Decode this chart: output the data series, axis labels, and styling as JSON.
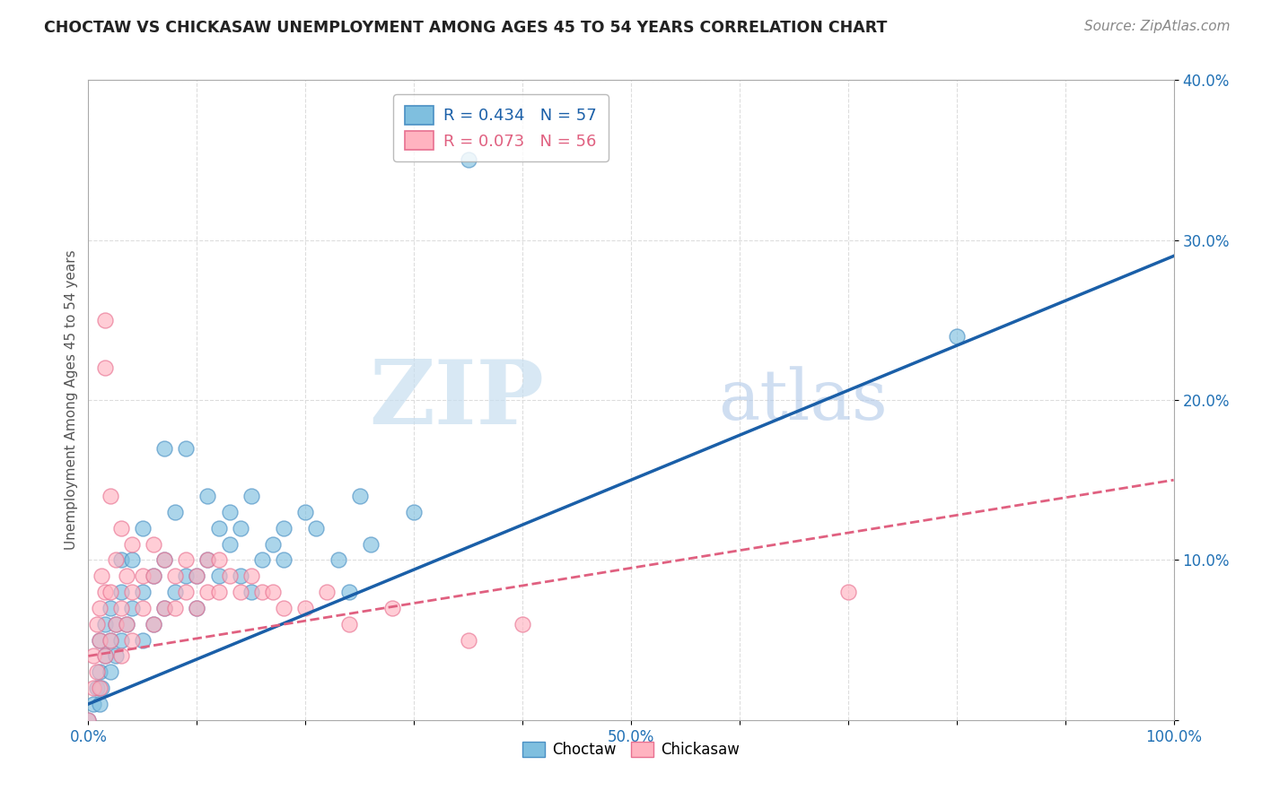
{
  "title": "CHOCTAW VS CHICKASAW UNEMPLOYMENT AMONG AGES 45 TO 54 YEARS CORRELATION CHART",
  "source_text": "Source: ZipAtlas.com",
  "ylabel": "Unemployment Among Ages 45 to 54 years",
  "xlim": [
    0.0,
    1.0
  ],
  "ylim": [
    0.0,
    0.4
  ],
  "x_ticks": [
    0.0,
    0.1,
    0.2,
    0.3,
    0.4,
    0.5,
    0.6,
    0.7,
    0.8,
    0.9,
    1.0
  ],
  "x_tick_labels": [
    "0.0%",
    "",
    "",
    "",
    "",
    "50.0%",
    "",
    "",
    "",
    "",
    "100.0%"
  ],
  "y_ticks": [
    0.0,
    0.1,
    0.2,
    0.3,
    0.4
  ],
  "y_tick_labels": [
    "",
    "10.0%",
    "20.0%",
    "30.0%",
    "40.0%"
  ],
  "choctaw_color": "#7fbfdf",
  "chickasaw_color": "#ffb3c0",
  "choctaw_edge_color": "#4a90c4",
  "chickasaw_edge_color": "#e87090",
  "choctaw_line_color": "#1a5fa8",
  "chickasaw_line_color": "#e06080",
  "R_choctaw": 0.434,
  "N_choctaw": 57,
  "R_chickasaw": 0.073,
  "N_chickasaw": 56,
  "watermark_zip": "ZIP",
  "watermark_atlas": "atlas",
  "watermark_color_zip": "#c8dff0",
  "watermark_color_atlas": "#b0c8e8",
  "background_color": "#ffffff",
  "grid_color": "#dddddd",
  "choctaw_line_x": [
    0.0,
    1.0
  ],
  "choctaw_line_y": [
    0.01,
    0.29
  ],
  "chickasaw_line_x": [
    0.0,
    1.0
  ],
  "chickasaw_line_y": [
    0.04,
    0.15
  ],
  "choctaw_scatter": [
    [
      0.0,
      0.0
    ],
    [
      0.005,
      0.01
    ],
    [
      0.008,
      0.02
    ],
    [
      0.01,
      0.01
    ],
    [
      0.01,
      0.03
    ],
    [
      0.01,
      0.05
    ],
    [
      0.012,
      0.02
    ],
    [
      0.015,
      0.04
    ],
    [
      0.015,
      0.06
    ],
    [
      0.02,
      0.03
    ],
    [
      0.02,
      0.05
    ],
    [
      0.02,
      0.07
    ],
    [
      0.025,
      0.04
    ],
    [
      0.025,
      0.06
    ],
    [
      0.03,
      0.05
    ],
    [
      0.03,
      0.08
    ],
    [
      0.03,
      0.1
    ],
    [
      0.035,
      0.06
    ],
    [
      0.04,
      0.07
    ],
    [
      0.04,
      0.1
    ],
    [
      0.05,
      0.05
    ],
    [
      0.05,
      0.08
    ],
    [
      0.05,
      0.12
    ],
    [
      0.06,
      0.06
    ],
    [
      0.06,
      0.09
    ],
    [
      0.07,
      0.07
    ],
    [
      0.07,
      0.1
    ],
    [
      0.07,
      0.17
    ],
    [
      0.08,
      0.08
    ],
    [
      0.08,
      0.13
    ],
    [
      0.09,
      0.09
    ],
    [
      0.09,
      0.17
    ],
    [
      0.1,
      0.07
    ],
    [
      0.1,
      0.09
    ],
    [
      0.11,
      0.1
    ],
    [
      0.11,
      0.14
    ],
    [
      0.12,
      0.09
    ],
    [
      0.12,
      0.12
    ],
    [
      0.13,
      0.11
    ],
    [
      0.13,
      0.13
    ],
    [
      0.14,
      0.09
    ],
    [
      0.14,
      0.12
    ],
    [
      0.15,
      0.08
    ],
    [
      0.15,
      0.14
    ],
    [
      0.16,
      0.1
    ],
    [
      0.17,
      0.11
    ],
    [
      0.18,
      0.12
    ],
    [
      0.18,
      0.1
    ],
    [
      0.2,
      0.13
    ],
    [
      0.21,
      0.12
    ],
    [
      0.23,
      0.1
    ],
    [
      0.24,
      0.08
    ],
    [
      0.25,
      0.14
    ],
    [
      0.26,
      0.11
    ],
    [
      0.3,
      0.13
    ],
    [
      0.35,
      0.35
    ],
    [
      0.8,
      0.24
    ]
  ],
  "chickasaw_scatter": [
    [
      0.0,
      0.0
    ],
    [
      0.005,
      0.02
    ],
    [
      0.005,
      0.04
    ],
    [
      0.008,
      0.06
    ],
    [
      0.008,
      0.03
    ],
    [
      0.01,
      0.02
    ],
    [
      0.01,
      0.05
    ],
    [
      0.01,
      0.07
    ],
    [
      0.012,
      0.09
    ],
    [
      0.015,
      0.04
    ],
    [
      0.015,
      0.08
    ],
    [
      0.015,
      0.22
    ],
    [
      0.015,
      0.25
    ],
    [
      0.02,
      0.05
    ],
    [
      0.02,
      0.08
    ],
    [
      0.02,
      0.14
    ],
    [
      0.025,
      0.06
    ],
    [
      0.025,
      0.1
    ],
    [
      0.03,
      0.04
    ],
    [
      0.03,
      0.07
    ],
    [
      0.03,
      0.12
    ],
    [
      0.035,
      0.06
    ],
    [
      0.035,
      0.09
    ],
    [
      0.04,
      0.05
    ],
    [
      0.04,
      0.08
    ],
    [
      0.04,
      0.11
    ],
    [
      0.05,
      0.07
    ],
    [
      0.05,
      0.09
    ],
    [
      0.06,
      0.06
    ],
    [
      0.06,
      0.09
    ],
    [
      0.06,
      0.11
    ],
    [
      0.07,
      0.07
    ],
    [
      0.07,
      0.1
    ],
    [
      0.08,
      0.07
    ],
    [
      0.08,
      0.09
    ],
    [
      0.09,
      0.08
    ],
    [
      0.09,
      0.1
    ],
    [
      0.1,
      0.07
    ],
    [
      0.1,
      0.09
    ],
    [
      0.11,
      0.08
    ],
    [
      0.11,
      0.1
    ],
    [
      0.12,
      0.08
    ],
    [
      0.12,
      0.1
    ],
    [
      0.13,
      0.09
    ],
    [
      0.14,
      0.08
    ],
    [
      0.15,
      0.09
    ],
    [
      0.16,
      0.08
    ],
    [
      0.17,
      0.08
    ],
    [
      0.18,
      0.07
    ],
    [
      0.2,
      0.07
    ],
    [
      0.22,
      0.08
    ],
    [
      0.24,
      0.06
    ],
    [
      0.28,
      0.07
    ],
    [
      0.35,
      0.05
    ],
    [
      0.4,
      0.06
    ],
    [
      0.7,
      0.08
    ]
  ]
}
